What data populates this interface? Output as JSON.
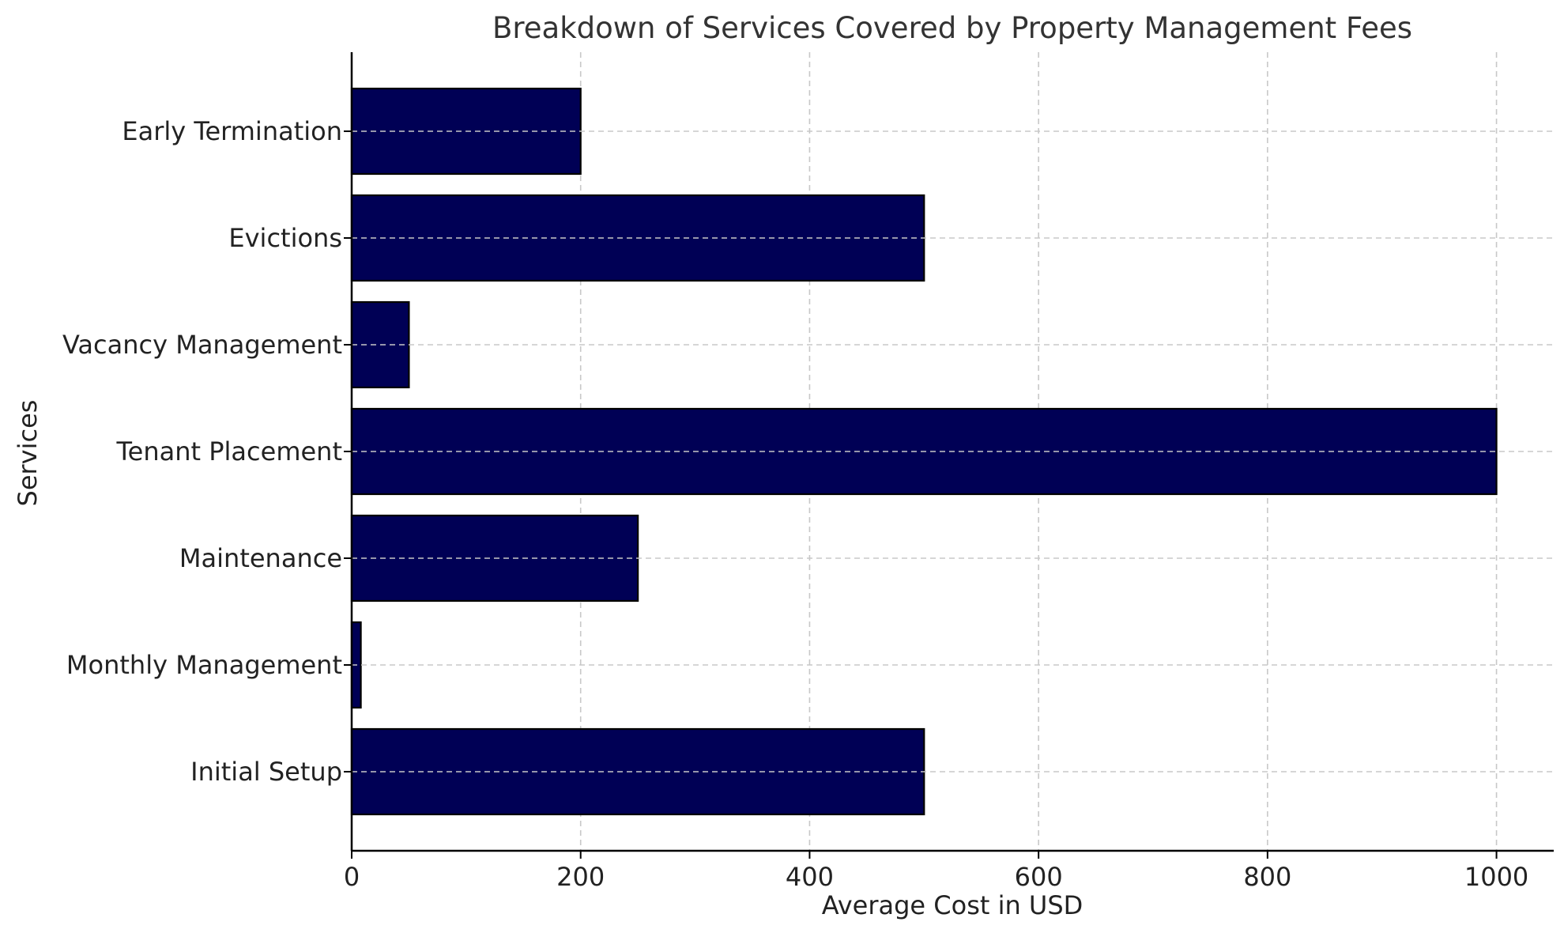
{
  "chart_data": {
    "type": "bar",
    "orientation": "horizontal",
    "title": "Breakdown of Services Covered by Property Management Fees",
    "xlabel": "Average Cost in USD",
    "ylabel": "Services",
    "categories": [
      "Initial Setup",
      "Monthly Management",
      "Maintenance",
      "Tenant Placement",
      "Vacancy Management",
      "Evictions",
      "Early Termination"
    ],
    "values": [
      500,
      8,
      250,
      1000,
      50,
      500,
      200
    ],
    "xlim": [
      0,
      1050
    ],
    "xticks": [
      0,
      200,
      400,
      600,
      800,
      1000
    ],
    "grid": true,
    "bar_color": "#000055",
    "edge_color": "#000000"
  }
}
